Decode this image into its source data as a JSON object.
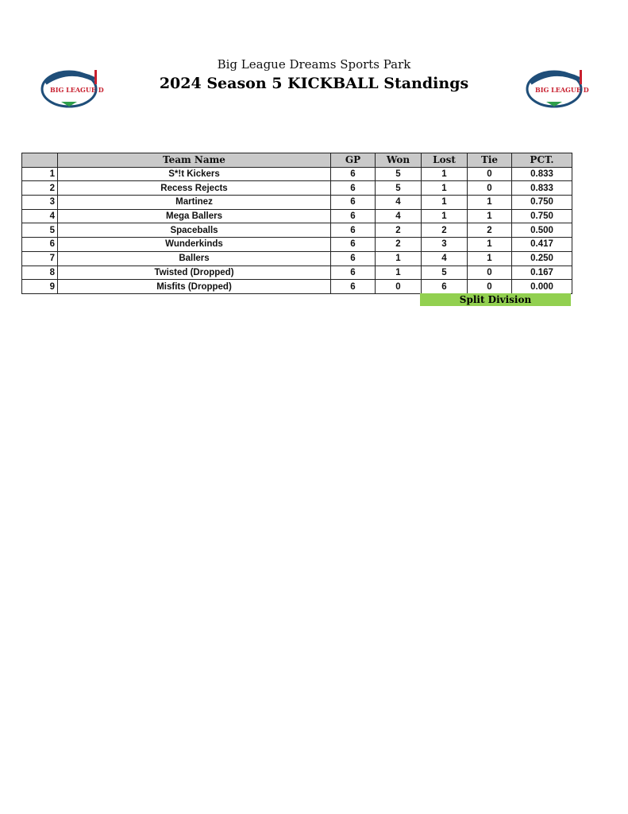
{
  "header": {
    "subtitle": "Big League Dreams Sports Park",
    "title": "2024 Season 5 KICKBALL Standings",
    "logo_text": "BIG LEAGUE DREAMS"
  },
  "table": {
    "columns": [
      "",
      "Team Name",
      "GP",
      "Won",
      "Lost",
      "Tie",
      "PCT."
    ],
    "rows": [
      {
        "rank": "1",
        "team": "S*!t Kickers",
        "gp": "6",
        "won": "5",
        "lost": "1",
        "tie": "0",
        "pct": "0.833"
      },
      {
        "rank": "2",
        "team": "Recess Rejects",
        "gp": "6",
        "won": "5",
        "lost": "1",
        "tie": "0",
        "pct": "0.833"
      },
      {
        "rank": "3",
        "team": "Martinez",
        "gp": "6",
        "won": "4",
        "lost": "1",
        "tie": "1",
        "pct": "0.750"
      },
      {
        "rank": "4",
        "team": "Mega Ballers",
        "gp": "6",
        "won": "4",
        "lost": "1",
        "tie": "1",
        "pct": "0.750"
      },
      {
        "rank": "5",
        "team": "Spaceballs",
        "gp": "6",
        "won": "2",
        "lost": "2",
        "tie": "2",
        "pct": "0.500"
      },
      {
        "rank": "6",
        "team": "Wunderkinds",
        "gp": "6",
        "won": "2",
        "lost": "3",
        "tie": "1",
        "pct": "0.417"
      },
      {
        "rank": "7",
        "team": "Ballers",
        "gp": "6",
        "won": "1",
        "lost": "4",
        "tie": "1",
        "pct": "0.250"
      },
      {
        "rank": "8",
        "team": "Twisted (Dropped)",
        "gp": "6",
        "won": "1",
        "lost": "5",
        "tie": "0",
        "pct": "0.167"
      },
      {
        "rank": "9",
        "team": "Misfits (Dropped)",
        "gp": "6",
        "won": "0",
        "lost": "6",
        "tie": "0",
        "pct": "0.000"
      }
    ]
  },
  "footer": {
    "division_label": "Split Division",
    "division_color": "#92d050"
  },
  "colors": {
    "header_bg": "#c9c9c9",
    "logo_red": "#c8202f",
    "logo_blue": "#1f4e79",
    "logo_green": "#2e9e4a"
  }
}
